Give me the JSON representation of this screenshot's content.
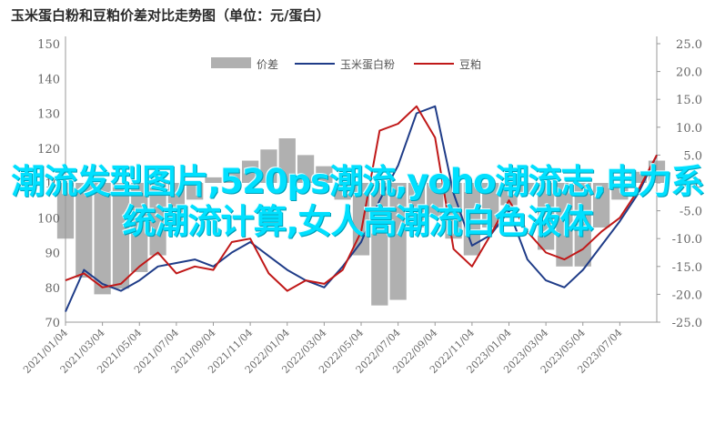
{
  "chart_data": {
    "type": "line",
    "title": "玉米蛋白粉和豆粕价差对比走势图（单位：元/蛋白）",
    "x_ticks": [
      "2021/01/04",
      "2021/03/04",
      "2021/05/04",
      "2021/07/04",
      "2021/09/04",
      "2021/11/04",
      "2022/01/04",
      "2022/03/04",
      "2022/05/04",
      "2022/07/04",
      "2022/09/04",
      "2022/11/04",
      "2023/01/04",
      "2023/03/04",
      "2023/05/04",
      "2023/07/04"
    ],
    "x": [
      "2021/01/04",
      "2021/02/04",
      "2021/03/04",
      "2021/04/04",
      "2021/05/04",
      "2021/06/04",
      "2021/07/04",
      "2021/08/04",
      "2021/09/04",
      "2021/10/04",
      "2021/11/04",
      "2021/12/04",
      "2022/01/04",
      "2022/02/04",
      "2022/03/04",
      "2022/04/04",
      "2022/05/04",
      "2022/06/04",
      "2022/07/04",
      "2022/08/04",
      "2022/09/04",
      "2022/10/04",
      "2022/11/04",
      "2022/12/04",
      "2023/01/04",
      "2023/02/04",
      "2023/03/04",
      "2023/04/04",
      "2023/05/04",
      "2023/06/04",
      "2023/07/04",
      "2023/08/04",
      "2023/09/04"
    ],
    "left_axis": {
      "ticks": [
        "70",
        "80",
        "90",
        "100",
        "110",
        "120",
        "130",
        "140",
        "150"
      ],
      "ylim": [
        70,
        150
      ]
    },
    "right_axis": {
      "ticks": [
        "-25.0",
        "-20.0",
        "-15.0",
        "-10.0",
        "-5.0",
        "0.0",
        "5.0",
        "10.0",
        "15.0",
        "20.0",
        "25.0"
      ],
      "ylim": [
        -25,
        25
      ]
    },
    "series": [
      {
        "name": "价差",
        "type": "area",
        "axis": "right",
        "color": "#b0b0b0",
        "values": [
          -10,
          -17,
          -20,
          -19,
          -16,
          -13,
          -7,
          -3,
          1,
          2,
          4,
          6,
          8,
          5,
          3,
          -3,
          -13,
          -22,
          -21,
          -8,
          -6,
          -10,
          -13,
          -8,
          -4,
          -2,
          -12,
          -15,
          -15,
          -8,
          -3,
          2,
          4
        ]
      },
      {
        "name": "玉米蛋白粉",
        "type": "line",
        "axis": "left",
        "color": "#1f3c88",
        "values": [
          73,
          85,
          81,
          79,
          82,
          86,
          87,
          88,
          86,
          90,
          93,
          89,
          85,
          82,
          80,
          86,
          93,
          105,
          115,
          130,
          132,
          107,
          92,
          95,
          102,
          88,
          82,
          80,
          85,
          92,
          99,
          107,
          118
        ]
      },
      {
        "name": "豆粕",
        "type": "line",
        "axis": "left",
        "color": "#c01818",
        "values": [
          82,
          84,
          80,
          81,
          86,
          90,
          84,
          86,
          85,
          93,
          94,
          84,
          79,
          82,
          81,
          85,
          96,
          125,
          127,
          132,
          123,
          91,
          86,
          95,
          105,
          96,
          90,
          88,
          91,
          96,
          100,
          108,
          118
        ]
      }
    ],
    "legend_position": "top-center",
    "grid": false
  },
  "overlay_text": "潮流发型图片,520ps潮流,yoho潮流志,电力系统潮流计算,女人高潮流白色液体"
}
